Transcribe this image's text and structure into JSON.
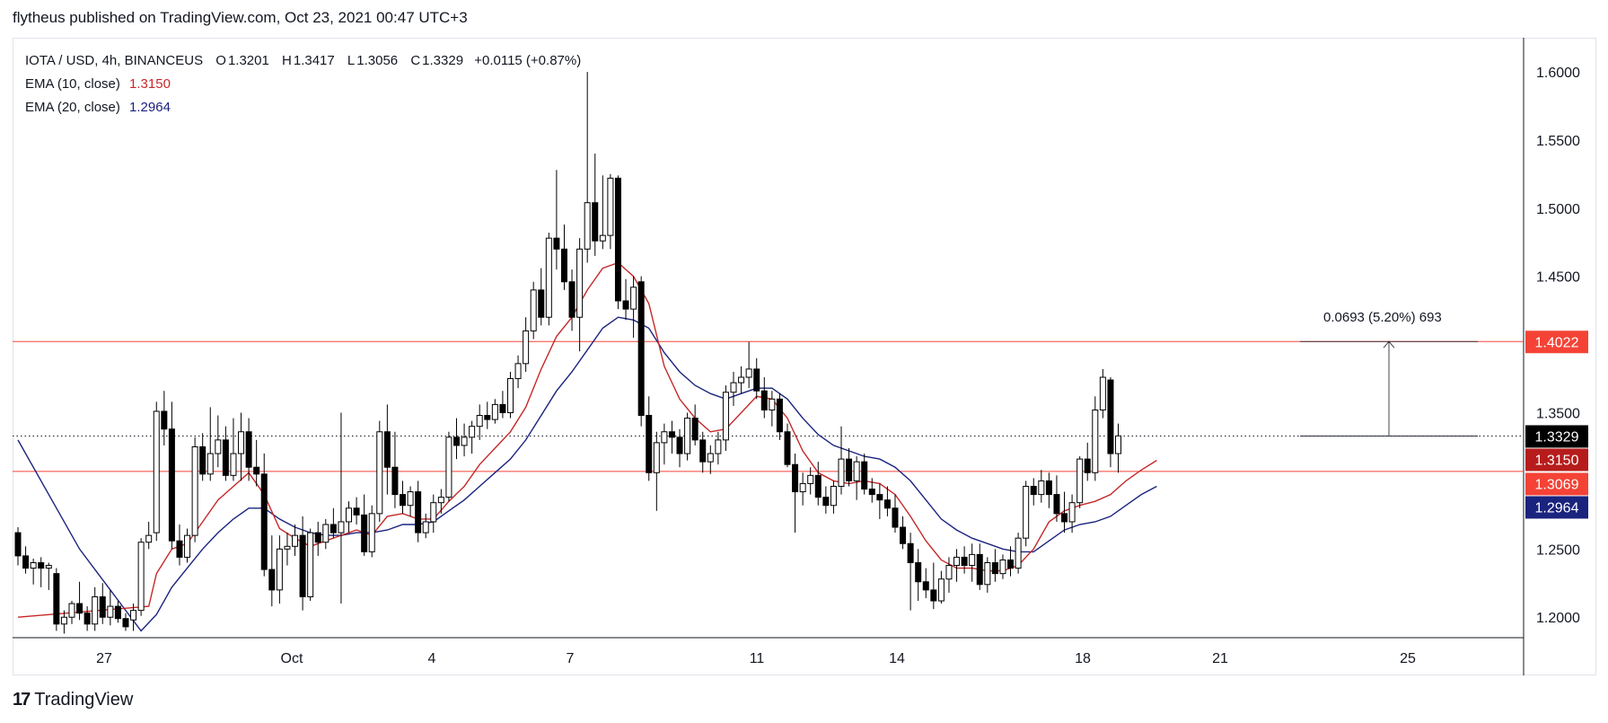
{
  "header": {
    "credit": "flytheus published on TradingView.com, Oct 23, 2021 00:47 UTC+3"
  },
  "legend": {
    "symbol": "IOTA / USD, 4h, BINANCEUS",
    "open_label": "O",
    "open": "1.3201",
    "high_label": "H",
    "high": "1.3417",
    "low_label": "L",
    "low": "1.3056",
    "close_label": "C",
    "close": "1.3329",
    "change": "+0.0115 (+0.87%)",
    "ema10_label": "EMA (10, close)",
    "ema10_value": "1.3150",
    "ema20_label": "EMA (20, close)",
    "ema20_value": "1.2964"
  },
  "measure": {
    "label": "0.0693 (5.20%) 693"
  },
  "footer": {
    "logo_mark": "17",
    "logo_text": "TradingView"
  },
  "colors": {
    "up_body": "#ffffff",
    "down_body": "#000000",
    "candle_outline": "#000000",
    "ema10": "#c62828",
    "ema20": "#1a237e",
    "hline": "#f44336",
    "badge_close": "#000000",
    "badge_ema10": "#b71c1c",
    "badge_low_line": "#f44336",
    "badge_high_line": "#f44336",
    "badge_ema20": "#1a237e",
    "text": "#131722"
  },
  "chart_data": {
    "type": "candlestick",
    "ylim": [
      1.185,
      1.625
    ],
    "y_ticks": [
      "1.6000",
      "1.5500",
      "1.5000",
      "1.4500",
      "1.3500",
      "1.2500",
      "1.2000"
    ],
    "x_ticks": [
      {
        "label": "27",
        "date": "2021-09-27"
      },
      {
        "label": "Oct",
        "date": "2021-10-01"
      },
      {
        "label": "4",
        "date": "2021-10-04"
      },
      {
        "label": "7",
        "date": "2021-10-07"
      },
      {
        "label": "11",
        "date": "2021-10-11"
      },
      {
        "label": "14",
        "date": "2021-10-14"
      },
      {
        "label": "18",
        "date": "2021-10-18"
      },
      {
        "label": "21",
        "date": "2021-10-21"
      },
      {
        "label": "25",
        "date": "2021-10-25"
      }
    ],
    "horizontal_lines": [
      1.4022,
      1.3069
    ],
    "last_price_line": 1.3329,
    "price_badges": [
      {
        "value": "1.4022",
        "kind": "high_line"
      },
      {
        "value": "1.3329",
        "kind": "close"
      },
      {
        "value": "1.3150",
        "kind": "ema10"
      },
      {
        "value": "1.3069",
        "kind": "low_line"
      },
      {
        "value": "1.2964",
        "kind": "ema20"
      }
    ],
    "measure_from": 1.3329,
    "measure_to": 1.4022,
    "candles_ohlc": [
      [
        1.262,
        1.266,
        1.238,
        1.245
      ],
      [
        1.245,
        1.252,
        1.232,
        1.236
      ],
      [
        1.236,
        1.243,
        1.224,
        1.24
      ],
      [
        1.24,
        1.244,
        1.222,
        1.236
      ],
      [
        1.236,
        1.24,
        1.22,
        1.238
      ],
      [
        1.232,
        1.236,
        1.19,
        1.195
      ],
      [
        1.195,
        1.205,
        1.188,
        1.2
      ],
      [
        1.2,
        1.212,
        1.195,
        1.21
      ],
      [
        1.21,
        1.226,
        1.198,
        1.203
      ],
      [
        1.203,
        1.208,
        1.19,
        1.195
      ],
      [
        1.195,
        1.222,
        1.19,
        1.215
      ],
      [
        1.215,
        1.225,
        1.195,
        1.2
      ],
      [
        1.2,
        1.22,
        1.194,
        1.208
      ],
      [
        1.208,
        1.212,
        1.196,
        1.199
      ],
      [
        1.199,
        1.203,
        1.19,
        1.193
      ],
      [
        1.198,
        1.21,
        1.19,
        1.205
      ],
      [
        1.205,
        1.258,
        1.201,
        1.255
      ],
      [
        1.255,
        1.27,
        1.25,
        1.26
      ],
      [
        1.262,
        1.358,
        1.256,
        1.351
      ],
      [
        1.351,
        1.366,
        1.326,
        1.338
      ],
      [
        1.338,
        1.358,
        1.25,
        1.256
      ],
      [
        1.256,
        1.268,
        1.238,
        1.244
      ],
      [
        1.244,
        1.265,
        1.24,
        1.26
      ],
      [
        1.26,
        1.332,
        1.255,
        1.325
      ],
      [
        1.325,
        1.335,
        1.3,
        1.305
      ],
      [
        1.305,
        1.354,
        1.3,
        1.32
      ],
      [
        1.32,
        1.348,
        1.31,
        1.33
      ],
      [
        1.33,
        1.34,
        1.3,
        1.304
      ],
      [
        1.304,
        1.346,
        1.3,
        1.32
      ],
      [
        1.32,
        1.35,
        1.3,
        1.336
      ],
      [
        1.336,
        1.346,
        1.3,
        1.31
      ],
      [
        1.31,
        1.33,
        1.296,
        1.305
      ],
      [
        1.305,
        1.32,
        1.23,
        1.235
      ],
      [
        1.235,
        1.26,
        1.208,
        1.22
      ],
      [
        1.22,
        1.26,
        1.21,
        1.25
      ],
      [
        1.25,
        1.262,
        1.238,
        1.252
      ],
      [
        1.252,
        1.268,
        1.245,
        1.26
      ],
      [
        1.26,
        1.274,
        1.205,
        1.215
      ],
      [
        1.215,
        1.265,
        1.212,
        1.262
      ],
      [
        1.262,
        1.27,
        1.245,
        1.255
      ],
      [
        1.255,
        1.272,
        1.25,
        1.268
      ],
      [
        1.268,
        1.28,
        1.258,
        1.262
      ],
      [
        1.262,
        1.35,
        1.21,
        1.27
      ],
      [
        1.27,
        1.285,
        1.262,
        1.28
      ],
      [
        1.28,
        1.288,
        1.268,
        1.275
      ],
      [
        1.275,
        1.29,
        1.245,
        1.248
      ],
      [
        1.248,
        1.282,
        1.244,
        1.276
      ],
      [
        1.276,
        1.344,
        1.27,
        1.336
      ],
      [
        1.336,
        1.356,
        1.29,
        1.31
      ],
      [
        1.31,
        1.336,
        1.28,
        1.29
      ],
      [
        1.29,
        1.3,
        1.276,
        1.282
      ],
      [
        1.282,
        1.296,
        1.274,
        1.292
      ],
      [
        1.292,
        1.3,
        1.255,
        1.262
      ],
      [
        1.262,
        1.276,
        1.258,
        1.27
      ],
      [
        1.27,
        1.29,
        1.262,
        1.284
      ],
      [
        1.284,
        1.294,
        1.276,
        1.288
      ],
      [
        1.288,
        1.336,
        1.285,
        1.332
      ],
      [
        1.332,
        1.346,
        1.316,
        1.326
      ],
      [
        1.326,
        1.342,
        1.318,
        1.332
      ],
      [
        1.332,
        1.344,
        1.32,
        1.34
      ],
      [
        1.34,
        1.356,
        1.33,
        1.348
      ],
      [
        1.348,
        1.358,
        1.338,
        1.345
      ],
      [
        1.345,
        1.36,
        1.342,
        1.356
      ],
      [
        1.356,
        1.366,
        1.346,
        1.35
      ],
      [
        1.35,
        1.38,
        1.346,
        1.375
      ],
      [
        1.375,
        1.392,
        1.368,
        1.386
      ],
      [
        1.386,
        1.42,
        1.38,
        1.41
      ],
      [
        1.41,
        1.446,
        1.404,
        1.44
      ],
      [
        1.44,
        1.456,
        1.414,
        1.42
      ],
      [
        1.42,
        1.482,
        1.414,
        1.478
      ],
      [
        1.478,
        1.528,
        1.455,
        1.47
      ],
      [
        1.47,
        1.488,
        1.44,
        1.446
      ],
      [
        1.446,
        1.455,
        1.41,
        1.42
      ],
      [
        1.42,
        1.478,
        1.395,
        1.47
      ],
      [
        1.47,
        1.6,
        1.46,
        1.504
      ],
      [
        1.504,
        1.54,
        1.465,
        1.476
      ],
      [
        1.476,
        1.524,
        1.47,
        1.48
      ],
      [
        1.48,
        1.525,
        1.47,
        1.522
      ],
      [
        1.522,
        1.524,
        1.426,
        1.432
      ],
      [
        1.432,
        1.448,
        1.418,
        1.426
      ],
      [
        1.426,
        1.45,
        1.405,
        1.442
      ],
      [
        1.446,
        1.45,
        1.34,
        1.348
      ],
      [
        1.348,
        1.362,
        1.3,
        1.306
      ],
      [
        1.306,
        1.336,
        1.278,
        1.328
      ],
      [
        1.328,
        1.342,
        1.312,
        1.336
      ],
      [
        1.336,
        1.344,
        1.32,
        1.332
      ],
      [
        1.332,
        1.338,
        1.31,
        1.32
      ],
      [
        1.32,
        1.35,
        1.315,
        1.346
      ],
      [
        1.346,
        1.356,
        1.326,
        1.33
      ],
      [
        1.33,
        1.336,
        1.306,
        1.314
      ],
      [
        1.314,
        1.326,
        1.305,
        1.32
      ],
      [
        1.32,
        1.336,
        1.312,
        1.33
      ],
      [
        1.33,
        1.37,
        1.322,
        1.365
      ],
      [
        1.365,
        1.38,
        1.355,
        1.372
      ],
      [
        1.372,
        1.384,
        1.364,
        1.376
      ],
      [
        1.376,
        1.402,
        1.368,
        1.382
      ],
      [
        1.382,
        1.39,
        1.36,
        1.366
      ],
      [
        1.366,
        1.376,
        1.346,
        1.352
      ],
      [
        1.352,
        1.366,
        1.34,
        1.36
      ],
      [
        1.36,
        1.364,
        1.33,
        1.336
      ],
      [
        1.336,
        1.342,
        1.31,
        1.312
      ],
      [
        1.312,
        1.32,
        1.262,
        1.292
      ],
      [
        1.292,
        1.306,
        1.282,
        1.298
      ],
      [
        1.298,
        1.31,
        1.29,
        1.304
      ],
      [
        1.304,
        1.314,
        1.282,
        1.288
      ],
      [
        1.288,
        1.296,
        1.276,
        1.282
      ],
      [
        1.282,
        1.3,
        1.276,
        1.296
      ],
      [
        1.296,
        1.34,
        1.29,
        1.316
      ],
      [
        1.316,
        1.324,
        1.296,
        1.3
      ],
      [
        1.3,
        1.318,
        1.286,
        1.314
      ],
      [
        1.314,
        1.32,
        1.29,
        1.294
      ],
      [
        1.294,
        1.302,
        1.284,
        1.29
      ],
      [
        1.29,
        1.298,
        1.272,
        1.286
      ],
      [
        1.286,
        1.296,
        1.274,
        1.28
      ],
      [
        1.28,
        1.29,
        1.262,
        1.266
      ],
      [
        1.266,
        1.274,
        1.25,
        1.254
      ],
      [
        1.254,
        1.262,
        1.205,
        1.24
      ],
      [
        1.24,
        1.25,
        1.212,
        1.226
      ],
      [
        1.226,
        1.236,
        1.214,
        1.22
      ],
      [
        1.22,
        1.24,
        1.206,
        1.212
      ],
      [
        1.212,
        1.234,
        1.21,
        1.228
      ],
      [
        1.228,
        1.244,
        1.218,
        1.238
      ],
      [
        1.238,
        1.25,
        1.226,
        1.244
      ],
      [
        1.244,
        1.252,
        1.232,
        1.238
      ],
      [
        1.238,
        1.254,
        1.226,
        1.246
      ],
      [
        1.246,
        1.254,
        1.22,
        1.224
      ],
      [
        1.224,
        1.244,
        1.218,
        1.24
      ],
      [
        1.24,
        1.25,
        1.226,
        1.232
      ],
      [
        1.232,
        1.246,
        1.228,
        1.242
      ],
      [
        1.242,
        1.252,
        1.23,
        1.236
      ],
      [
        1.236,
        1.262,
        1.232,
        1.258
      ],
      [
        1.258,
        1.3,
        1.252,
        1.296
      ],
      [
        1.296,
        1.302,
        1.282,
        1.29
      ],
      [
        1.29,
        1.308,
        1.284,
        1.3
      ],
      [
        1.3,
        1.306,
        1.28,
        1.29
      ],
      [
        1.29,
        1.304,
        1.27,
        1.276
      ],
      [
        1.276,
        1.292,
        1.262,
        1.27
      ],
      [
        1.27,
        1.29,
        1.262,
        1.284
      ],
      [
        1.284,
        1.318,
        1.28,
        1.316
      ],
      [
        1.316,
        1.328,
        1.3,
        1.306
      ],
      [
        1.306,
        1.362,
        1.3,
        1.352
      ],
      [
        1.352,
        1.382,
        1.346,
        1.376
      ],
      [
        1.374,
        1.376,
        1.31,
        1.32
      ],
      [
        1.32,
        1.342,
        1.306,
        1.333
      ]
    ],
    "ema10": [
      [
        0,
        1.2
      ],
      [
        17,
        1.208
      ],
      [
        18,
        1.232
      ],
      [
        20,
        1.25
      ],
      [
        22,
        1.254
      ],
      [
        24,
        1.27
      ],
      [
        26,
        1.286
      ],
      [
        28,
        1.296
      ],
      [
        30,
        1.306
      ],
      [
        32,
        1.29
      ],
      [
        34,
        1.265
      ],
      [
        36,
        1.258
      ],
      [
        38,
        1.252
      ],
      [
        40,
        1.256
      ],
      [
        42,
        1.26
      ],
      [
        44,
        1.264
      ],
      [
        46,
        1.26
      ],
      [
        48,
        1.274
      ],
      [
        50,
        1.276
      ],
      [
        52,
        1.272
      ],
      [
        54,
        1.272
      ],
      [
        56,
        1.285
      ],
      [
        58,
        1.296
      ],
      [
        60,
        1.312
      ],
      [
        62,
        1.324
      ],
      [
        64,
        1.336
      ],
      [
        66,
        1.354
      ],
      [
        68,
        1.382
      ],
      [
        70,
        1.406
      ],
      [
        72,
        1.42
      ],
      [
        74,
        1.44
      ],
      [
        76,
        1.456
      ],
      [
        78,
        1.46
      ],
      [
        80,
        1.45
      ],
      [
        82,
        1.43
      ],
      [
        84,
        1.384
      ],
      [
        86,
        1.36
      ],
      [
        88,
        1.346
      ],
      [
        90,
        1.336
      ],
      [
        92,
        1.338
      ],
      [
        94,
        1.35
      ],
      [
        96,
        1.362
      ],
      [
        98,
        1.36
      ],
      [
        100,
        1.346
      ],
      [
        102,
        1.322
      ],
      [
        104,
        1.306
      ],
      [
        106,
        1.3
      ],
      [
        108,
        1.298
      ],
      [
        110,
        1.3
      ],
      [
        112,
        1.298
      ],
      [
        114,
        1.29
      ],
      [
        116,
        1.274
      ],
      [
        118,
        1.256
      ],
      [
        120,
        1.242
      ],
      [
        122,
        1.236
      ],
      [
        124,
        1.236
      ],
      [
        126,
        1.234
      ],
      [
        128,
        1.234
      ],
      [
        130,
        1.238
      ],
      [
        132,
        1.25
      ],
      [
        134,
        1.27
      ],
      [
        136,
        1.278
      ],
      [
        138,
        1.282
      ],
      [
        140,
        1.285
      ],
      [
        142,
        1.29
      ],
      [
        144,
        1.3
      ],
      [
        146,
        1.308
      ],
      [
        148,
        1.315
      ]
    ],
    "ema20": [
      [
        0,
        1.33
      ],
      [
        8,
        1.25
      ],
      [
        16,
        1.19
      ],
      [
        18,
        1.202
      ],
      [
        20,
        1.222
      ],
      [
        22,
        1.236
      ],
      [
        24,
        1.25
      ],
      [
        26,
        1.262
      ],
      [
        28,
        1.272
      ],
      [
        30,
        1.28
      ],
      [
        32,
        1.28
      ],
      [
        34,
        1.272
      ],
      [
        36,
        1.266
      ],
      [
        38,
        1.262
      ],
      [
        40,
        1.26
      ],
      [
        42,
        1.26
      ],
      [
        44,
        1.262
      ],
      [
        46,
        1.262
      ],
      [
        48,
        1.264
      ],
      [
        50,
        1.268
      ],
      [
        52,
        1.268
      ],
      [
        54,
        1.27
      ],
      [
        56,
        1.278
      ],
      [
        58,
        1.286
      ],
      [
        60,
        1.296
      ],
      [
        62,
        1.306
      ],
      [
        64,
        1.316
      ],
      [
        66,
        1.33
      ],
      [
        68,
        1.348
      ],
      [
        70,
        1.366
      ],
      [
        72,
        1.38
      ],
      [
        74,
        1.396
      ],
      [
        76,
        1.412
      ],
      [
        78,
        1.42
      ],
      [
        80,
        1.418
      ],
      [
        82,
        1.412
      ],
      [
        84,
        1.394
      ],
      [
        86,
        1.38
      ],
      [
        88,
        1.37
      ],
      [
        90,
        1.364
      ],
      [
        92,
        1.36
      ],
      [
        94,
        1.364
      ],
      [
        96,
        1.368
      ],
      [
        98,
        1.368
      ],
      [
        100,
        1.36
      ],
      [
        102,
        1.346
      ],
      [
        104,
        1.334
      ],
      [
        106,
        1.326
      ],
      [
        108,
        1.322
      ],
      [
        110,
        1.318
      ],
      [
        112,
        1.316
      ],
      [
        114,
        1.31
      ],
      [
        116,
        1.3
      ],
      [
        118,
        1.286
      ],
      [
        120,
        1.272
      ],
      [
        122,
        1.264
      ],
      [
        124,
        1.258
      ],
      [
        126,
        1.254
      ],
      [
        128,
        1.25
      ],
      [
        130,
        1.248
      ],
      [
        132,
        1.248
      ],
      [
        134,
        1.256
      ],
      [
        136,
        1.264
      ],
      [
        138,
        1.268
      ],
      [
        140,
        1.27
      ],
      [
        142,
        1.274
      ],
      [
        144,
        1.282
      ],
      [
        146,
        1.29
      ],
      [
        148,
        1.296
      ]
    ]
  }
}
